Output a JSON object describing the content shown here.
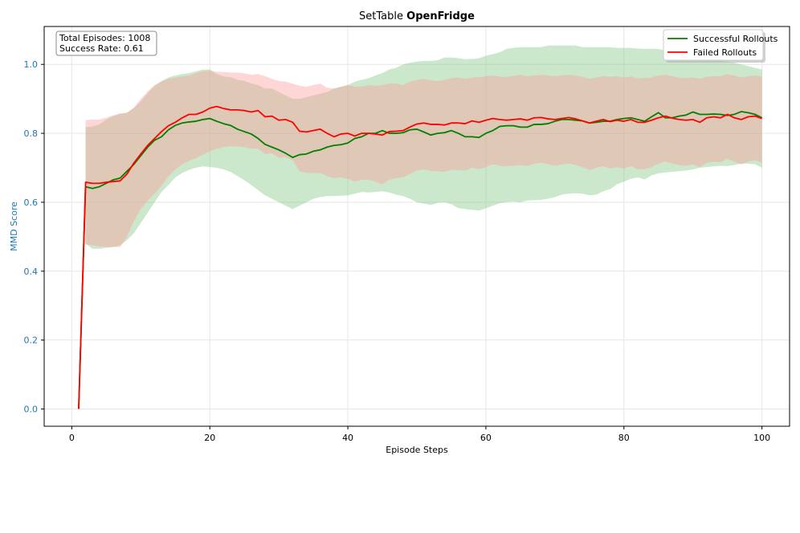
{
  "chart_data": {
    "type": "line",
    "title": "SetTable",
    "title_bold": "OpenFridge",
    "xlabel": "Episode Steps",
    "ylabel": "MMD Score",
    "xlim": [
      -4,
      104
    ],
    "ylim": [
      -0.05,
      1.11
    ],
    "xticks": [
      0,
      20,
      40,
      60,
      80,
      100
    ],
    "yticks": [
      0.0,
      0.2,
      0.4,
      0.6,
      0.8,
      1.0
    ],
    "ytick_labels": [
      "0.0",
      "0.2",
      "0.4",
      "0.6",
      "0.8",
      "1.0"
    ],
    "grid": true,
    "legend_position": "upper right",
    "annotation": [
      "Total Episodes: 1008",
      "Success Rate: 0.61"
    ],
    "x": [
      1,
      2,
      3,
      4,
      5,
      6,
      7,
      8,
      9,
      10,
      11,
      12,
      13,
      14,
      15,
      16,
      17,
      18,
      19,
      20,
      21,
      22,
      23,
      24,
      25,
      26,
      27,
      28,
      29,
      30,
      31,
      32,
      33,
      34,
      35,
      36,
      37,
      38,
      39,
      40,
      41,
      42,
      43,
      44,
      45,
      46,
      47,
      48,
      49,
      50,
      51,
      52,
      53,
      54,
      55,
      56,
      57,
      58,
      59,
      60,
      61,
      62,
      63,
      64,
      65,
      66,
      67,
      68,
      69,
      70,
      71,
      72,
      73,
      74,
      75,
      76,
      77,
      78,
      79,
      80,
      81,
      82,
      83,
      84,
      85,
      86,
      87,
      88,
      89,
      90,
      91,
      92,
      93,
      94,
      95,
      96,
      97,
      98,
      99,
      100
    ],
    "series": [
      {
        "name": "Successful Rollouts",
        "color": "#008000",
        "band_color": "#7fc67f",
        "mean": [
          0.0,
          0.645,
          0.64,
          0.645,
          0.655,
          0.665,
          0.67,
          0.69,
          0.71,
          0.735,
          0.76,
          0.78,
          0.79,
          0.81,
          0.823,
          0.83,
          0.833,
          0.835,
          0.84,
          0.843,
          0.835,
          0.828,
          0.823,
          0.812,
          0.805,
          0.798,
          0.785,
          0.768,
          0.76,
          0.752,
          0.742,
          0.73,
          0.738,
          0.74,
          0.748,
          0.752,
          0.76,
          0.765,
          0.767,
          0.772,
          0.785,
          0.79,
          0.8,
          0.8,
          0.808,
          0.8,
          0.8,
          0.802,
          0.81,
          0.812,
          0.804,
          0.795,
          0.8,
          0.802,
          0.808,
          0.8,
          0.79,
          0.79,
          0.788,
          0.8,
          0.808,
          0.82,
          0.822,
          0.822,
          0.818,
          0.818,
          0.826,
          0.826,
          0.828,
          0.835,
          0.84,
          0.84,
          0.838,
          0.836,
          0.83,
          0.832,
          0.835,
          0.835,
          0.84,
          0.843,
          0.845,
          0.84,
          0.835,
          0.848,
          0.86,
          0.845,
          0.845,
          0.85,
          0.853,
          0.862,
          0.855,
          0.855,
          0.856,
          0.855,
          0.852,
          0.855,
          0.863,
          0.86,
          0.855,
          0.845
        ],
        "upper": [
          0.0,
          0.818,
          0.82,
          0.826,
          0.84,
          0.85,
          0.856,
          0.86,
          0.873,
          0.893,
          0.916,
          0.938,
          0.952,
          0.962,
          0.968,
          0.972,
          0.975,
          0.98,
          0.985,
          0.985,
          0.972,
          0.965,
          0.963,
          0.955,
          0.952,
          0.945,
          0.94,
          0.93,
          0.93,
          0.92,
          0.91,
          0.9,
          0.9,
          0.905,
          0.91,
          0.915,
          0.92,
          0.93,
          0.935,
          0.94,
          0.95,
          0.955,
          0.96,
          0.968,
          0.975,
          0.985,
          0.99,
          1.0,
          1.005,
          1.008,
          1.01,
          1.01,
          1.012,
          1.02,
          1.02,
          1.018,
          1.015,
          1.016,
          1.018,
          1.025,
          1.03,
          1.035,
          1.045,
          1.048,
          1.05,
          1.05,
          1.05,
          1.05,
          1.055,
          1.055,
          1.055,
          1.055,
          1.055,
          1.05,
          1.05,
          1.05,
          1.05,
          1.05,
          1.048,
          1.048,
          1.048,
          1.046,
          1.045,
          1.045,
          1.045,
          1.04,
          1.035,
          1.035,
          1.03,
          1.03,
          1.025,
          1.02,
          1.015,
          1.012,
          1.008,
          1.005,
          1.0,
          0.995,
          0.99,
          0.985
        ],
        "lower": [
          0.0,
          0.48,
          0.465,
          0.465,
          0.468,
          0.47,
          0.475,
          0.49,
          0.51,
          0.54,
          0.57,
          0.6,
          0.63,
          0.65,
          0.672,
          0.685,
          0.694,
          0.7,
          0.704,
          0.702,
          0.7,
          0.695,
          0.688,
          0.676,
          0.664,
          0.65,
          0.635,
          0.62,
          0.61,
          0.6,
          0.59,
          0.58,
          0.59,
          0.6,
          0.61,
          0.615,
          0.618,
          0.618,
          0.619,
          0.62,
          0.625,
          0.63,
          0.628,
          0.63,
          0.632,
          0.628,
          0.622,
          0.618,
          0.61,
          0.6,
          0.596,
          0.592,
          0.598,
          0.6,
          0.594,
          0.583,
          0.58,
          0.578,
          0.576,
          0.582,
          0.59,
          0.597,
          0.6,
          0.602,
          0.6,
          0.605,
          0.606,
          0.607,
          0.61,
          0.615,
          0.622,
          0.625,
          0.626,
          0.625,
          0.62,
          0.622,
          0.632,
          0.638,
          0.652,
          0.66,
          0.668,
          0.672,
          0.666,
          0.678,
          0.684,
          0.686,
          0.688,
          0.69,
          0.692,
          0.695,
          0.7,
          0.702,
          0.704,
          0.706,
          0.705,
          0.708,
          0.712,
          0.712,
          0.71,
          0.7
        ]
      },
      {
        "name": "Failed Rollouts",
        "color": "#ff0000",
        "band_color": "#ff9999",
        "mean": [
          0.0,
          0.658,
          0.655,
          0.655,
          0.658,
          0.66,
          0.662,
          0.682,
          0.714,
          0.74,
          0.765,
          0.785,
          0.805,
          0.822,
          0.832,
          0.845,
          0.855,
          0.855,
          0.862,
          0.873,
          0.878,
          0.872,
          0.868,
          0.868,
          0.866,
          0.862,
          0.866,
          0.848,
          0.85,
          0.838,
          0.84,
          0.832,
          0.806,
          0.804,
          0.808,
          0.812,
          0.8,
          0.79,
          0.798,
          0.8,
          0.792,
          0.8,
          0.8,
          0.798,
          0.795,
          0.805,
          0.806,
          0.808,
          0.818,
          0.827,
          0.83,
          0.826,
          0.826,
          0.824,
          0.83,
          0.83,
          0.828,
          0.836,
          0.832,
          0.838,
          0.843,
          0.84,
          0.838,
          0.84,
          0.842,
          0.838,
          0.845,
          0.846,
          0.842,
          0.84,
          0.843,
          0.846,
          0.842,
          0.836,
          0.83,
          0.835,
          0.84,
          0.834,
          0.838,
          0.835,
          0.84,
          0.832,
          0.832,
          0.838,
          0.845,
          0.85,
          0.844,
          0.84,
          0.838,
          0.84,
          0.832,
          0.845,
          0.848,
          0.845,
          0.855,
          0.845,
          0.84,
          0.848,
          0.85,
          0.843
        ],
        "upper": [
          0.0,
          0.838,
          0.84,
          0.84,
          0.846,
          0.852,
          0.858,
          0.86,
          0.875,
          0.9,
          0.922,
          0.94,
          0.95,
          0.958,
          0.962,
          0.965,
          0.968,
          0.975,
          0.98,
          0.982,
          0.978,
          0.978,
          0.976,
          0.976,
          0.974,
          0.97,
          0.972,
          0.966,
          0.958,
          0.952,
          0.95,
          0.944,
          0.938,
          0.935,
          0.94,
          0.944,
          0.932,
          0.93,
          0.935,
          0.94,
          0.936,
          0.935,
          0.94,
          0.938,
          0.94,
          0.945,
          0.945,
          0.94,
          0.95,
          0.955,
          0.958,
          0.954,
          0.952,
          0.955,
          0.96,
          0.962,
          0.958,
          0.962,
          0.963,
          0.966,
          0.968,
          0.965,
          0.963,
          0.967,
          0.97,
          0.966,
          0.968,
          0.97,
          0.968,
          0.966,
          0.968,
          0.97,
          0.968,
          0.964,
          0.958,
          0.962,
          0.966,
          0.964,
          0.966,
          0.962,
          0.965,
          0.96,
          0.96,
          0.962,
          0.968,
          0.97,
          0.966,
          0.962,
          0.96,
          0.962,
          0.958,
          0.964,
          0.966,
          0.966,
          0.972,
          0.968,
          0.962,
          0.966,
          0.968,
          0.965
        ],
        "lower": [
          0.0,
          0.478,
          0.475,
          0.472,
          0.47,
          0.47,
          0.47,
          0.5,
          0.545,
          0.58,
          0.605,
          0.625,
          0.648,
          0.675,
          0.695,
          0.71,
          0.72,
          0.728,
          0.738,
          0.748,
          0.755,
          0.76,
          0.762,
          0.762,
          0.76,
          0.756,
          0.755,
          0.74,
          0.742,
          0.73,
          0.73,
          0.722,
          0.69,
          0.685,
          0.685,
          0.685,
          0.676,
          0.67,
          0.672,
          0.668,
          0.66,
          0.665,
          0.665,
          0.66,
          0.652,
          0.665,
          0.67,
          0.672,
          0.682,
          0.692,
          0.695,
          0.69,
          0.69,
          0.688,
          0.694,
          0.694,
          0.692,
          0.7,
          0.696,
          0.702,
          0.71,
          0.706,
          0.704,
          0.706,
          0.708,
          0.705,
          0.712,
          0.715,
          0.71,
          0.706,
          0.71,
          0.712,
          0.708,
          0.702,
          0.694,
          0.7,
          0.705,
          0.698,
          0.702,
          0.698,
          0.705,
          0.696,
          0.696,
          0.702,
          0.712,
          0.718,
          0.712,
          0.708,
          0.706,
          0.71,
          0.702,
          0.714,
          0.718,
          0.716,
          0.726,
          0.718,
          0.71,
          0.718,
          0.722,
          0.715
        ]
      }
    ]
  }
}
